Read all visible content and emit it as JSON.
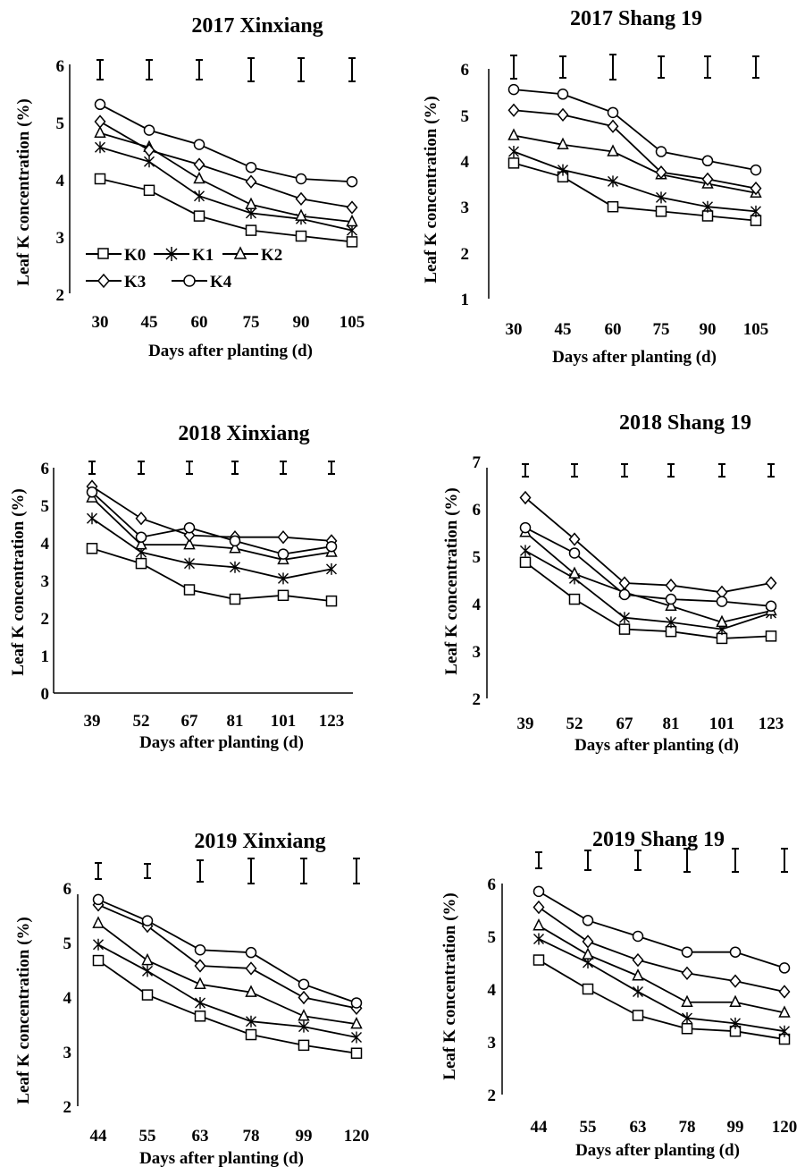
{
  "legend": [
    {
      "label": "K0",
      "marker": "square"
    },
    {
      "label": "K1",
      "marker": "star"
    },
    {
      "label": "K2",
      "marker": "triangle"
    },
    {
      "label": "K3",
      "marker": "diamond"
    },
    {
      "label": "K4",
      "marker": "circle"
    }
  ],
  "chart_data": [
    {
      "type": "line",
      "title": "2017 Xinxiang",
      "xlabel": "Days after planting (d)",
      "ylabel": "Leaf K concentration (%)",
      "categories": [
        "30",
        "45",
        "60",
        "75",
        "90",
        "105"
      ],
      "ylim": [
        2,
        6
      ],
      "yticks": [
        2,
        3,
        4,
        5,
        6
      ],
      "legend_position": "lower-left",
      "error_bar_half": [
        0.15,
        0.15,
        0.15,
        0.18,
        0.2,
        0.2
      ],
      "series": [
        {
          "name": "K0",
          "values": [
            4.0,
            3.8,
            3.35,
            3.1,
            3.0,
            2.9
          ]
        },
        {
          "name": "K1",
          "values": [
            4.55,
            4.3,
            3.7,
            3.4,
            3.3,
            3.1
          ]
        },
        {
          "name": "K2",
          "values": [
            4.8,
            4.55,
            4.0,
            3.55,
            3.35,
            3.25
          ]
        },
        {
          "name": "K3",
          "values": [
            5.0,
            4.5,
            4.25,
            3.95,
            3.65,
            3.5
          ]
        },
        {
          "name": "K4",
          "values": [
            5.3,
            4.85,
            4.6,
            4.2,
            4.0,
            3.95
          ]
        }
      ]
    },
    {
      "type": "line",
      "title": "2017 Shang 19",
      "xlabel": "Days after planting (d)",
      "ylabel": "Leaf K concentration (%)",
      "categories": [
        "30",
        "45",
        "60",
        "75",
        "90",
        "105"
      ],
      "ylim": [
        1,
        6
      ],
      "yticks": [
        1,
        2,
        3,
        4,
        5,
        6
      ],
      "error_bar_half": [
        0.22,
        0.2,
        0.22,
        0.2,
        0.2,
        0.2
      ],
      "series": [
        {
          "name": "K0",
          "values": [
            3.95,
            3.65,
            3.0,
            2.9,
            2.8,
            2.7
          ]
        },
        {
          "name": "K1",
          "values": [
            4.2,
            3.8,
            3.55,
            3.2,
            3.0,
            2.9
          ]
        },
        {
          "name": "K2",
          "values": [
            4.55,
            4.35,
            4.2,
            3.7,
            3.5,
            3.3
          ]
        },
        {
          "name": "K3",
          "values": [
            5.1,
            5.0,
            4.75,
            3.75,
            3.6,
            3.4
          ]
        },
        {
          "name": "K4",
          "values": [
            5.55,
            5.45,
            5.05,
            4.2,
            4.0,
            3.8
          ]
        }
      ]
    },
    {
      "type": "line",
      "title": "2018 Xinxiang",
      "xlabel": "Days after planting (d)",
      "ylabel": "Leaf K concentration (%)",
      "categories": [
        "39",
        "52",
        "67",
        "81",
        "101",
        "123"
      ],
      "ylim": [
        0,
        6
      ],
      "yticks": [
        0,
        1,
        2,
        3,
        4,
        5,
        6
      ],
      "error_bar_half": [
        0.15,
        0.15,
        0.15,
        0.15,
        0.15,
        0.15
      ],
      "series": [
        {
          "name": "K0",
          "values": [
            3.85,
            3.45,
            2.75,
            2.5,
            2.6,
            2.45
          ]
        },
        {
          "name": "K1",
          "values": [
            4.65,
            3.75,
            3.45,
            3.35,
            3.05,
            3.3
          ]
        },
        {
          "name": "K2",
          "values": [
            5.2,
            3.95,
            3.95,
            3.85,
            3.55,
            3.75
          ]
        },
        {
          "name": "K3",
          "values": [
            5.5,
            4.65,
            4.2,
            4.15,
            4.15,
            4.05
          ]
        },
        {
          "name": "K4",
          "values": [
            5.35,
            4.15,
            4.4,
            4.05,
            3.7,
            3.9
          ]
        }
      ]
    },
    {
      "type": "line",
      "title": "2018 Shang 19",
      "xlabel": "Days after planting (d)",
      "ylabel": "Leaf K concentration (%)",
      "categories": [
        "39",
        "52",
        "67",
        "81",
        "101",
        "123"
      ],
      "ylim": [
        2,
        7
      ],
      "yticks": [
        2,
        3,
        4,
        5,
        6,
        7
      ],
      "error_bar_half": [
        0.15,
        0.15,
        0.15,
        0.15,
        0.15,
        0.15
      ],
      "series": [
        {
          "name": "K0",
          "values": [
            4.95,
            4.15,
            3.5,
            3.45,
            3.3,
            3.35
          ]
        },
        {
          "name": "K1",
          "values": [
            5.2,
            4.6,
            3.75,
            3.65,
            3.5,
            3.85
          ]
        },
        {
          "name": "K2",
          "values": [
            5.6,
            4.7,
            4.3,
            4.0,
            3.65,
            3.9
          ]
        },
        {
          "name": "K3",
          "values": [
            6.35,
            5.45,
            4.5,
            4.45,
            4.3,
            4.5
          ]
        },
        {
          "name": "K4",
          "values": [
            5.7,
            5.15,
            4.25,
            4.15,
            4.1,
            4.0
          ]
        }
      ]
    },
    {
      "type": "line",
      "title": "2019 Xinxiang",
      "xlabel": "Days after planting (d)",
      "ylabel": "Leaf K concentration (%)",
      "categories": [
        "44",
        "55",
        "63",
        "78",
        "99",
        "120"
      ],
      "ylim": [
        2,
        6
      ],
      "yticks": [
        2,
        3,
        4,
        5,
        6
      ],
      "error_bar_half": [
        0.15,
        0.12,
        0.18,
        0.2,
        0.2,
        0.2
      ],
      "series": [
        {
          "name": "K0",
          "values": [
            4.75,
            4.1,
            3.7,
            3.35,
            3.15,
            3.0
          ]
        },
        {
          "name": "K1",
          "values": [
            5.05,
            4.55,
            3.95,
            3.6,
            3.5,
            3.3
          ]
        },
        {
          "name": "K2",
          "values": [
            5.45,
            4.75,
            4.3,
            4.15,
            3.7,
            3.55
          ]
        },
        {
          "name": "K3",
          "values": [
            5.8,
            5.4,
            4.65,
            4.6,
            4.05,
            3.85
          ]
        },
        {
          "name": "K4",
          "values": [
            5.9,
            5.5,
            4.95,
            4.9,
            4.3,
            3.95
          ]
        }
      ]
    },
    {
      "type": "line",
      "title": "2019 Shang 19",
      "xlabel": "Days after planting (d)",
      "ylabel": "Leaf K concentration (%)",
      "categories": [
        "44",
        "55",
        "63",
        "78",
        "99",
        "120"
      ],
      "ylim": [
        2,
        6
      ],
      "yticks": [
        2,
        3,
        4,
        5,
        6
      ],
      "error_bar_half": [
        0.15,
        0.2,
        0.2,
        0.2,
        0.2,
        0.2
      ],
      "series": [
        {
          "name": "K0",
          "values": [
            4.55,
            4.0,
            3.5,
            3.25,
            3.2,
            3.05
          ]
        },
        {
          "name": "K1",
          "values": [
            4.95,
            4.5,
            3.95,
            3.45,
            3.35,
            3.2
          ]
        },
        {
          "name": "K2",
          "values": [
            5.2,
            4.65,
            4.25,
            3.75,
            3.75,
            3.55
          ]
        },
        {
          "name": "K3",
          "values": [
            5.55,
            4.9,
            4.55,
            4.3,
            4.15,
            3.95
          ]
        },
        {
          "name": "K4",
          "values": [
            5.85,
            5.3,
            5.0,
            4.7,
            4.7,
            4.4
          ]
        }
      ]
    }
  ]
}
